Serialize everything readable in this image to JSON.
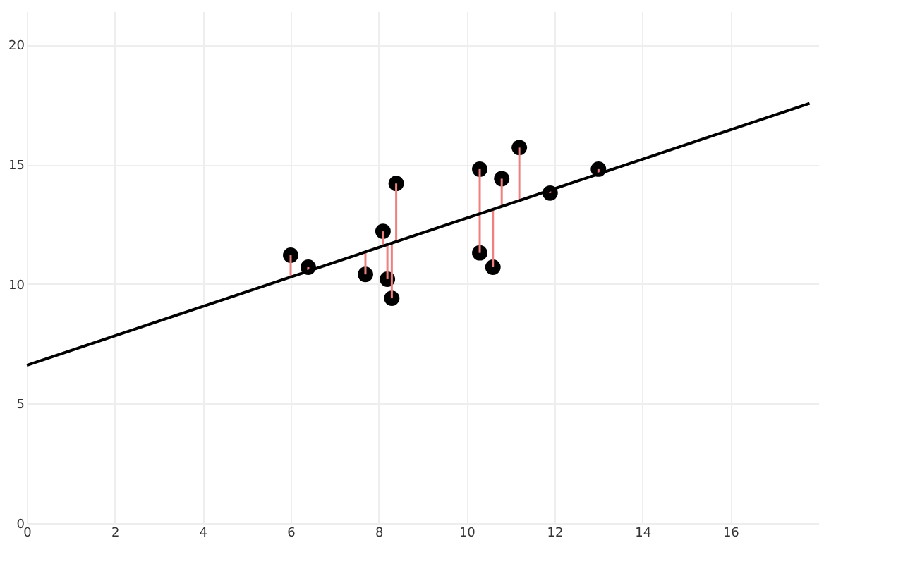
{
  "chart_data": {
    "type": "scatter",
    "xlim": [
      0,
      18
    ],
    "ylim": [
      0,
      21.4
    ],
    "xticks": [
      0,
      2,
      4,
      6,
      8,
      10,
      12,
      14,
      16
    ],
    "yticks": [
      0,
      5,
      10,
      15,
      20
    ],
    "grid": true,
    "series": [
      {
        "color": "#000000",
        "marker": "circle",
        "x": [
          6.0,
          6.4,
          7.7,
          8.1,
          8.2,
          8.3,
          8.4,
          10.3,
          10.3,
          10.6,
          10.8,
          11.2,
          11.9,
          13.0
        ],
        "values": [
          11.2,
          10.7,
          10.4,
          12.2,
          10.2,
          9.4,
          14.2,
          14.8,
          11.3,
          10.7,
          14.4,
          15.7,
          13.8,
          14.8
        ],
        "errors": [
          [
            10.3,
            11.2
          ],
          [
            10.5,
            10.7
          ],
          [
            10.4,
            11.3
          ],
          [
            11.6,
            12.2
          ],
          [
            10.2,
            11.6
          ],
          [
            9.4,
            11.7
          ],
          [
            11.8,
            14.2
          ],
          [
            12.9,
            14.8
          ],
          [
            11.3,
            12.9
          ],
          [
            10.7,
            13.1
          ],
          [
            13.2,
            14.4
          ],
          [
            13.5,
            15.7
          ],
          [
            13.8,
            13.9
          ],
          [
            14.6,
            14.8
          ]
        ]
      },
      {
        "type": "line",
        "color": "#000000",
        "x": [
          0,
          17.8
        ],
        "values": [
          6.6,
          17.55
        ],
        "marker": "none",
        "line_style": "solid"
      }
    ]
  }
}
